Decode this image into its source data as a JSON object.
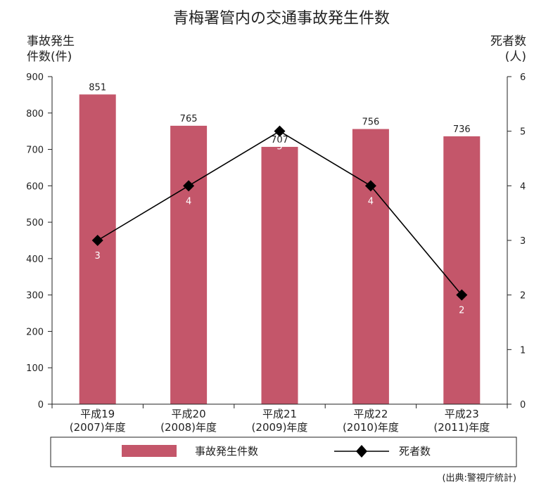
{
  "chart_data": {
    "type": "bar",
    "title": "青梅署管内の交通事故発生件数",
    "y_left_label": [
      "事故発生",
      "件数(件)"
    ],
    "y_right_label": [
      "死者数",
      "(人)"
    ],
    "categories": [
      [
        "平成19",
        "(2007)年度"
      ],
      [
        "平成20",
        "(2008)年度"
      ],
      [
        "平成21",
        "(2009)年度"
      ],
      [
        "平成22",
        "(2010)年度"
      ],
      [
        "平成23",
        "(2011)年度"
      ]
    ],
    "series": [
      {
        "name": "事故発生件数",
        "type": "bar",
        "axis": "left",
        "values": [
          851,
          765,
          707,
          756,
          736
        ],
        "color": "#c4566a"
      },
      {
        "name": "死者数",
        "type": "line",
        "axis": "right",
        "marker": "diamond",
        "values": [
          3,
          4,
          5,
          4,
          2
        ],
        "color": "#000000"
      }
    ],
    "ylim_left": [
      0,
      900
    ],
    "yticks_left": [
      0,
      100,
      200,
      300,
      400,
      500,
      600,
      700,
      800,
      900
    ],
    "ylim_right": [
      0,
      6
    ],
    "yticks_right": [
      0,
      1,
      2,
      3,
      4,
      5,
      6
    ],
    "legend": "bottom",
    "grid": false,
    "source_note": "(出典:警視庁統計)"
  }
}
